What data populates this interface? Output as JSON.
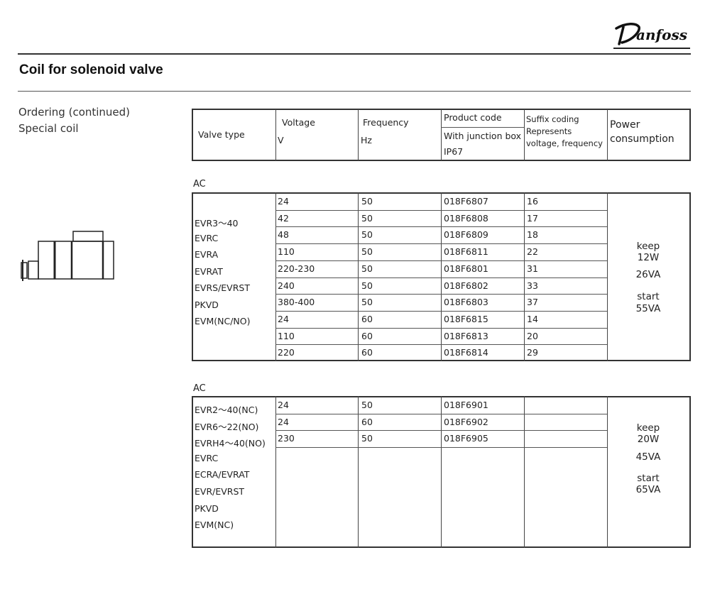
{
  "brand": {
    "logo_text": "Danfoss"
  },
  "title": "Coil for solenoid valve",
  "subtitle": [
    "Ordering (continued)",
    "Special coil"
  ],
  "header": {
    "valve_type": "Valve type",
    "voltage": "Voltage",
    "voltage_unit": "V",
    "frequency": "Frequency",
    "frequency_unit": "Hz",
    "product_code": "Product code",
    "product_code_sub1": "With junction box",
    "product_code_sub2": "IP67",
    "suffix1": "Suffix coding",
    "suffix2": "Represents",
    "suffix3": "voltage, frequency",
    "power1": "Power",
    "power2": "consumption"
  },
  "tables": [
    {
      "label": "AC",
      "valve_types": [
        "EVR3～40",
        "EVRC",
        "EVRA",
        "EVRAT",
        "EVRS/EVRST",
        "PKVD",
        "EVM(NC/NO)"
      ],
      "rows": [
        {
          "voltage": "24",
          "frequency": "50",
          "code": "018F6807",
          "suffix": "16"
        },
        {
          "voltage": "42",
          "frequency": "50",
          "code": "018F6808",
          "suffix": "17"
        },
        {
          "voltage": "48",
          "frequency": "50",
          "code": "018F6809",
          "suffix": "18"
        },
        {
          "voltage": "110",
          "frequency": "50",
          "code": "018F6811",
          "suffix": "22"
        },
        {
          "voltage": "220-230",
          "frequency": "50",
          "code": "018F6801",
          "suffix": "31"
        },
        {
          "voltage": "240",
          "frequency": "50",
          "code": "018F6802",
          "suffix": "33"
        },
        {
          "voltage": "380-400",
          "frequency": "50",
          "code": "018F6803",
          "suffix": "37"
        },
        {
          "voltage": "24",
          "frequency": "60",
          "code": "018F6815",
          "suffix": "14"
        },
        {
          "voltage": "110",
          "frequency": "60",
          "code": "018F6813",
          "suffix": "20"
        },
        {
          "voltage": "220",
          "frequency": "60",
          "code": "018F6814",
          "suffix": "29"
        }
      ],
      "power": {
        "keep": "keep",
        "keep_w": "12W",
        "keep_va": "26VA",
        "start": "start",
        "start_va": "55VA"
      }
    },
    {
      "label": "AC",
      "valve_types": [
        "EVR2～40(NC)",
        "EVR6～22(NO)",
        "EVRH4～40(NO)",
        "EVRC",
        "ECRA/EVRAT",
        "EVR/EVRST",
        "PKVD",
        "EVM(NC)"
      ],
      "rows": [
        {
          "voltage": "24",
          "frequency": "50",
          "code": "018F6901",
          "suffix": ""
        },
        {
          "voltage": "24",
          "frequency": "60",
          "code": "018F6902",
          "suffix": ""
        },
        {
          "voltage": "230",
          "frequency": "50",
          "code": "018F6905",
          "suffix": ""
        }
      ],
      "power": {
        "keep": "keep",
        "keep_w": "20W",
        "keep_va": "45VA",
        "start": "start",
        "start_va": "65VA"
      }
    }
  ]
}
